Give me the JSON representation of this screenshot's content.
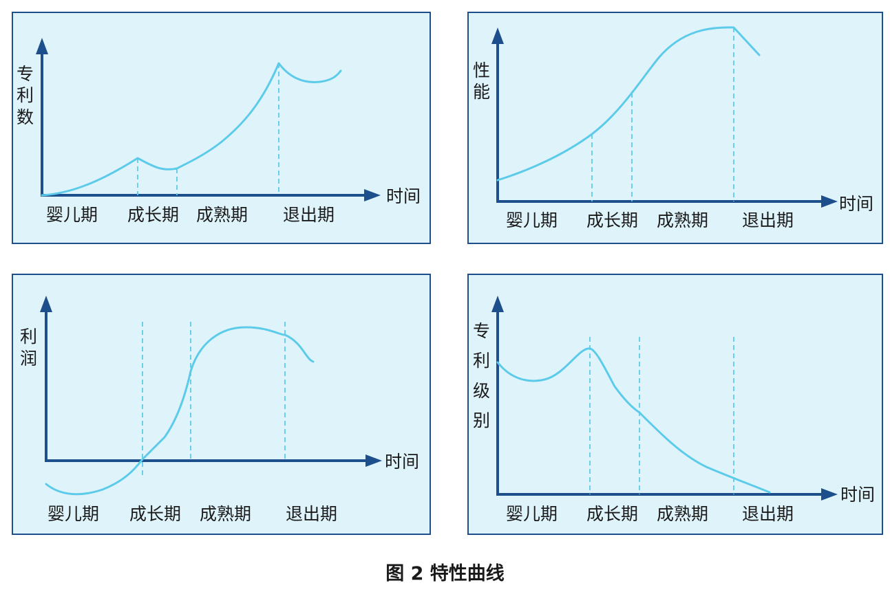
{
  "caption": "图 2  特性曲线",
  "stages": [
    "婴儿期",
    "成长期",
    "成熟期",
    "退出期"
  ],
  "x_axis_label": "时间",
  "panels": [
    {
      "y_label_chars": [
        "专",
        "利",
        "数"
      ]
    },
    {
      "y_label_chars": [
        "性",
        "能"
      ]
    },
    {
      "y_label_chars": [
        "利",
        "润"
      ]
    },
    {
      "y_label_chars": [
        "专",
        "利",
        "级",
        "别"
      ]
    }
  ],
  "colors": {
    "axis": "#1d4f8c",
    "curve": "#5ccbea",
    "panel_bg": "#dff3fb"
  }
}
